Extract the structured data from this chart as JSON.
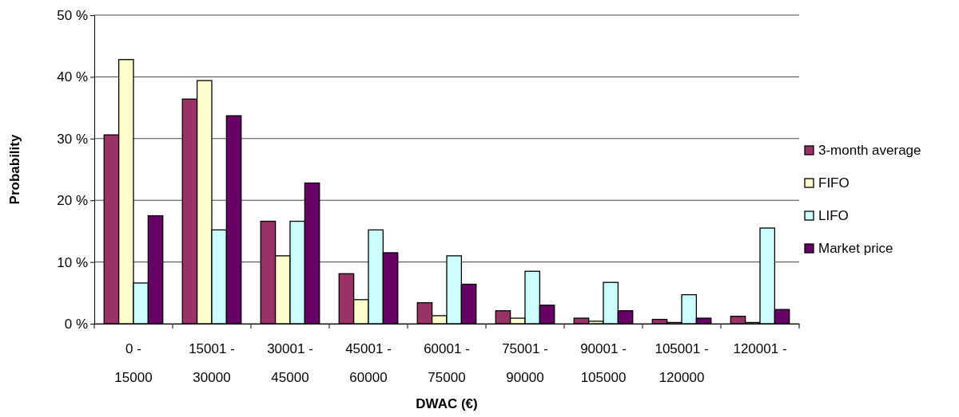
{
  "chart_data": {
    "type": "bar",
    "xlabel": "DWAC (€)",
    "ylabel": "Probability",
    "categories": [
      "0 - 15000",
      "15001 - 30000",
      "30001 - 45000",
      "45001 - 60000",
      "60001 - 75000",
      "75001 - 90000",
      "90001 - 105000",
      "105001 - 120000",
      "120001 -"
    ],
    "series": [
      {
        "name": "3-month average",
        "color": "#993366",
        "values": [
          30.6,
          36.4,
          16.6,
          8.1,
          3.4,
          2.1,
          0.9,
          0.7,
          1.2
        ]
      },
      {
        "name": "FIFO",
        "color": "#ffffcc",
        "values": [
          42.8,
          39.4,
          11.0,
          3.9,
          1.3,
          0.9,
          0.4,
          0.2,
          0.2
        ]
      },
      {
        "name": "LIFO",
        "color": "#ccffff",
        "values": [
          6.6,
          15.2,
          16.6,
          15.2,
          11.0,
          8.5,
          6.7,
          4.7,
          15.5
        ]
      },
      {
        "name": "Market price",
        "color": "#660066",
        "values": [
          17.5,
          33.7,
          22.8,
          11.5,
          6.4,
          3.0,
          2.1,
          0.9,
          2.3
        ]
      }
    ],
    "ylim": [
      0,
      50
    ],
    "yticks": [
      {
        "value": 0,
        "label": "0 %"
      },
      {
        "value": 10,
        "label": "10 %"
      },
      {
        "value": 20,
        "label": "20 %"
      },
      {
        "value": 30,
        "label": "30 %"
      },
      {
        "value": 40,
        "label": "40 %"
      },
      {
        "value": 50,
        "label": "50 %"
      }
    ],
    "grid": "y",
    "legend": "right"
  }
}
